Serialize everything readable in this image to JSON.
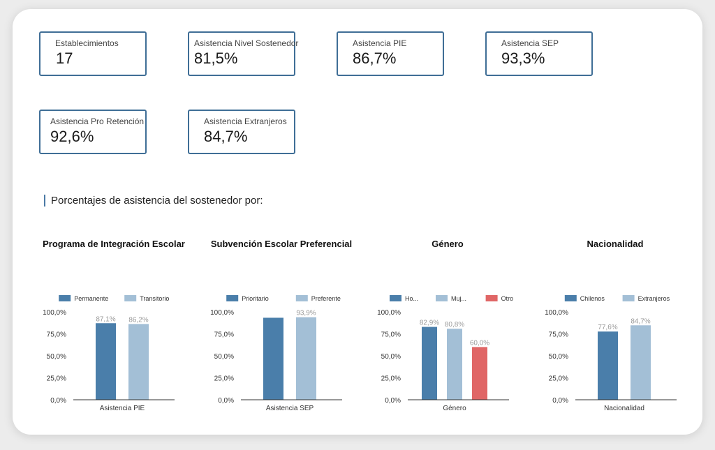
{
  "kpis": [
    {
      "label": "Establecimientos",
      "value": "17"
    },
    {
      "label": "Asistencia Nivel Sostenedor",
      "value": "81,5%"
    },
    {
      "label": "Asistencia PIE",
      "value": "86,7%"
    },
    {
      "label": "Asistencia SEP",
      "value": "93,3%"
    },
    {
      "label": "Asistencia Pro Retención",
      "value": "92,6%"
    },
    {
      "label": "Asistencia Extranjeros",
      "value": "84,7%"
    }
  ],
  "section_heading": "Porcentajes de asistencia del sostenedor por:",
  "chart_titles": [
    "Programa de Integración Escolar",
    "Subvención Escolar Preferencial",
    "Género",
    "Nacionalidad"
  ],
  "chart_data": [
    {
      "type": "bar",
      "title": "Programa de Integración Escolar",
      "categories": [
        "Asistencia PIE"
      ],
      "series": [
        {
          "name": "Permanente",
          "values": [
            87.1
          ],
          "color": "#4a7eaa"
        },
        {
          "name": "Transitorio",
          "values": [
            86.2
          ],
          "color": "#a3bfd6"
        }
      ],
      "data_labels": [
        "87,1%",
        "86,2%"
      ],
      "y_ticks": [
        "100,0%",
        "75,0%",
        "50,0%",
        "25,0%",
        "0,0%"
      ],
      "ylim": [
        0,
        100
      ],
      "legend": "top"
    },
    {
      "type": "bar",
      "title": "Subvención Escolar Preferencial",
      "categories": [
        "Asistencia SEP"
      ],
      "series": [
        {
          "name": "Prioritario",
          "values": [
            93.3
          ],
          "color": "#4a7eaa"
        },
        {
          "name": "Preferente",
          "values": [
            93.9
          ],
          "color": "#a3bfd6"
        }
      ],
      "data_labels": [
        "",
        "93,9%"
      ],
      "y_ticks": [
        "100,0%",
        "75,0%",
        "50,0%",
        "25,0%",
        "0,0%"
      ],
      "ylim": [
        0,
        100
      ],
      "legend": "top"
    },
    {
      "type": "bar",
      "title": "Género",
      "categories": [
        "Género"
      ],
      "series": [
        {
          "name": "Ho...",
          "values": [
            82.9
          ],
          "color": "#4a7eaa"
        },
        {
          "name": "Muj...",
          "values": [
            80.8
          ],
          "color": "#a3bfd6"
        },
        {
          "name": "Otro",
          "values": [
            60.0
          ],
          "color": "#e06666"
        }
      ],
      "data_labels": [
        "82,9%",
        "80,8%",
        "60,0%"
      ],
      "y_ticks": [
        "100,0%",
        "75,0%",
        "50,0%",
        "25,0%",
        "0,0%"
      ],
      "ylim": [
        0,
        100
      ],
      "legend": "top"
    },
    {
      "type": "bar",
      "title": "Nacionalidad",
      "categories": [
        "Nacionalidad"
      ],
      "series": [
        {
          "name": "Chilenos",
          "values": [
            77.6
          ],
          "color": "#4a7eaa"
        },
        {
          "name": "Extranjeros",
          "values": [
            84.7
          ],
          "color": "#a3bfd6"
        }
      ],
      "data_labels": [
        "77,6%",
        "84,7%"
      ],
      "y_ticks": [
        "100,0%",
        "75,0%",
        "50,0%",
        "25,0%",
        "0,0%"
      ],
      "ylim": [
        0,
        100
      ],
      "legend": "top"
    }
  ]
}
